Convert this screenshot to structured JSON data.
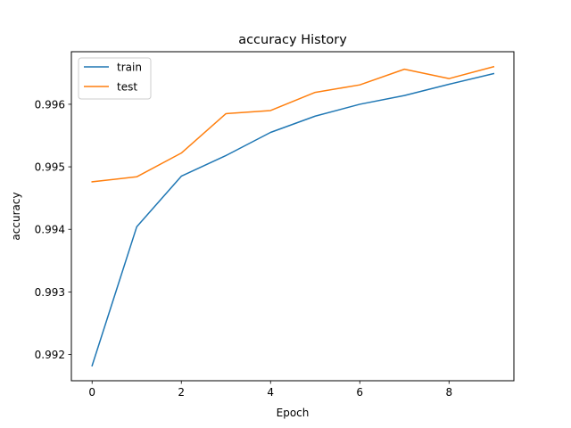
{
  "chart_data": {
    "type": "line",
    "title": "accuracy History",
    "xlabel": "Epoch",
    "ylabel": "accuracy",
    "x": [
      0,
      1,
      2,
      3,
      4,
      5,
      6,
      7,
      8,
      9
    ],
    "series": [
      {
        "name": "train",
        "color": "#1f77b4",
        "values": [
          0.99182,
          0.99404,
          0.99485,
          0.99518,
          0.99555,
          0.99581,
          0.996,
          0.99614,
          0.99632,
          0.99649
        ]
      },
      {
        "name": "test",
        "color": "#ff7f0e",
        "values": [
          0.99476,
          0.99484,
          0.99522,
          0.99585,
          0.9959,
          0.99619,
          0.99631,
          0.99656,
          0.99641,
          0.9966
        ]
      }
    ],
    "xlim": [
      -0.4645,
      9.4545
    ],
    "ylim": [
      0.99158,
      0.99684
    ],
    "xticks": [
      0,
      2,
      4,
      6,
      8
    ],
    "yticks": [
      0.992,
      0.993,
      0.994,
      0.995,
      0.996
    ],
    "xtick_labels": [
      "0",
      "2",
      "4",
      "6",
      "8"
    ],
    "ytick_labels": [
      "0.992",
      "0.993",
      "0.994",
      "0.995",
      "0.996"
    ],
    "grid": false,
    "legend_position": "top-left"
  }
}
